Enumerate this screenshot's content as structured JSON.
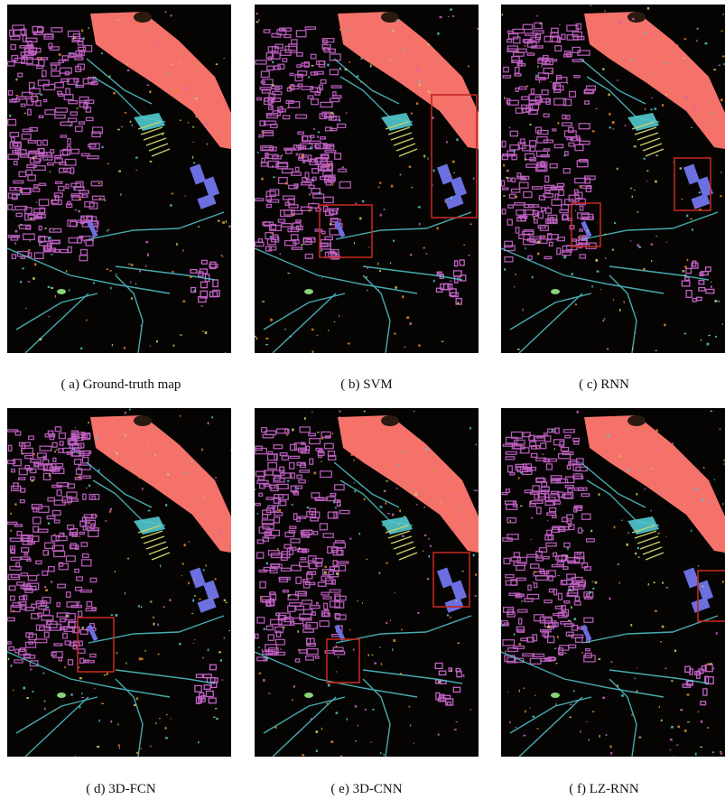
{
  "figure": {
    "panels": [
      {
        "id": "a",
        "caption": "( a)  Ground-truth map",
        "highlight_boxes": 0
      },
      {
        "id": "b",
        "caption": "( b)  SVM",
        "highlight_boxes": 2
      },
      {
        "id": "c",
        "caption": "( c)  RNN",
        "highlight_boxes": 2
      },
      {
        "id": "d",
        "caption": "( d)  3D-FCN",
        "highlight_boxes": 1
      },
      {
        "id": "e",
        "caption": "( e)  3D-CNN",
        "highlight_boxes": 2
      },
      {
        "id": "f",
        "caption": "( f)  LZ-RNN",
        "highlight_boxes": 1
      }
    ],
    "class_colors": {
      "background": "#050402",
      "salmon_region": "#f4726a",
      "magenta_structures": "#c463c6",
      "cyan_lines": "#52c9cf",
      "blue_patches": "#6b6fe0",
      "yellow_green": "#c8d26a",
      "orange_points": "#e08a2a",
      "highlight_box": "#c0281e"
    }
  }
}
